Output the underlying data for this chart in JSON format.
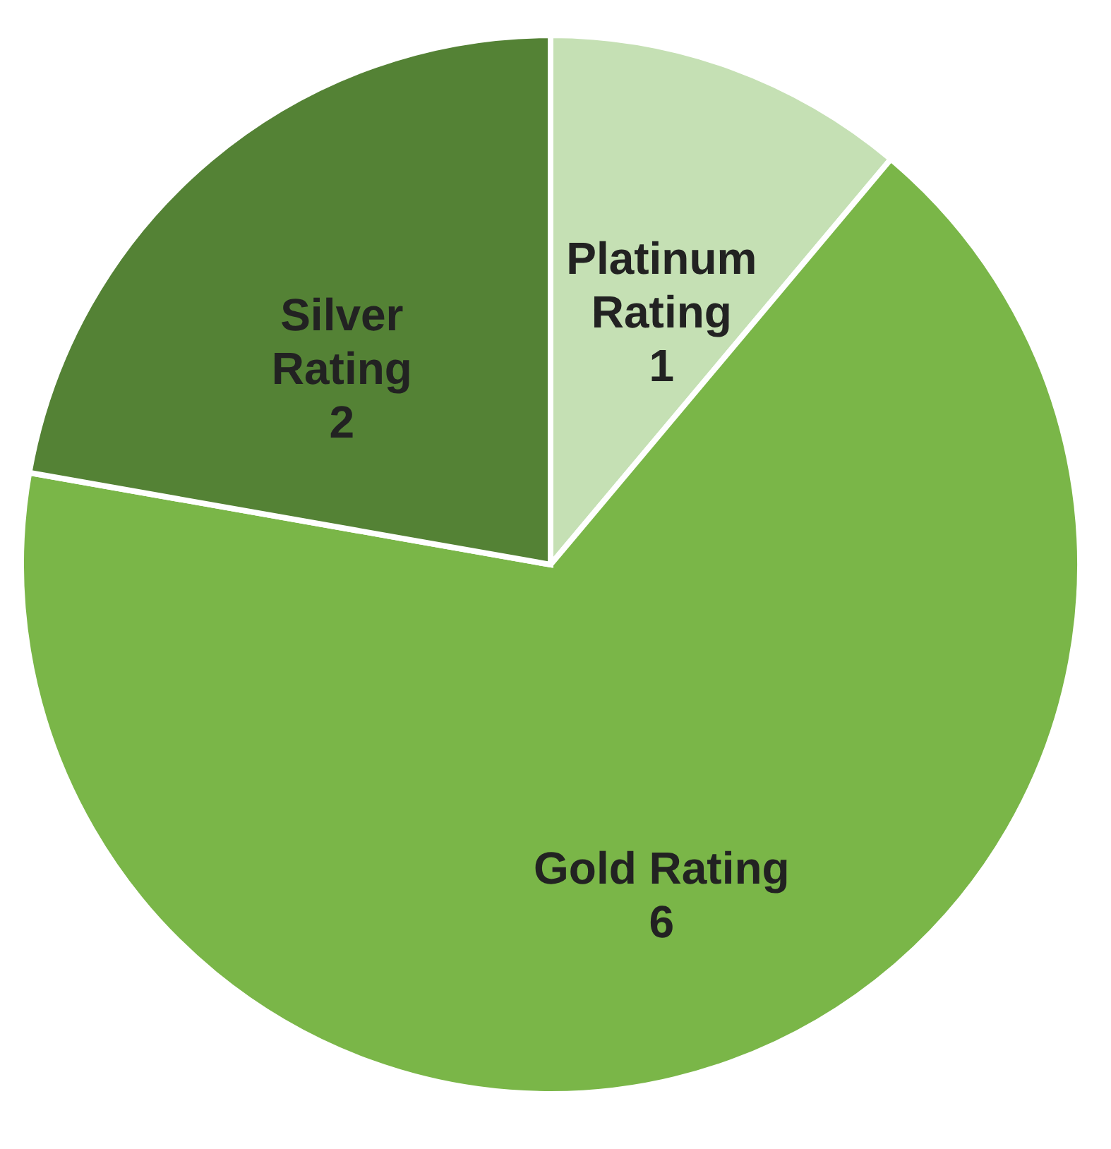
{
  "chart_data": {
    "type": "pie",
    "categories": [
      "Platinum Rating",
      "Gold Rating",
      "Silver Rating"
    ],
    "values": [
      1,
      6,
      2
    ],
    "colors": [
      "#c5e0b4",
      "#7ab648",
      "#548235"
    ],
    "data_labels": true,
    "legend": false
  }
}
